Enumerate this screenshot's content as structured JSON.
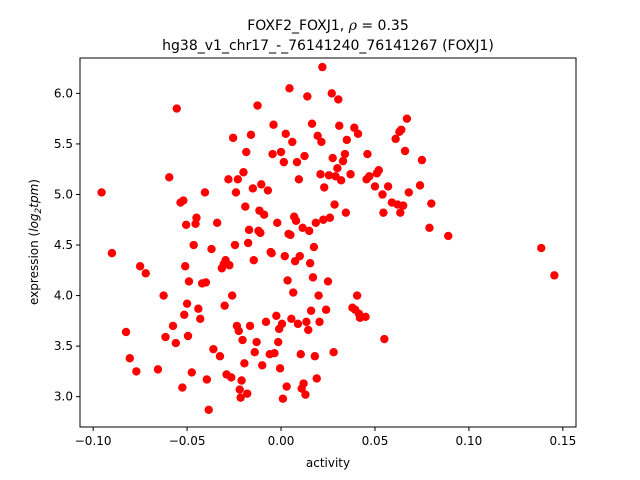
{
  "chart_data": {
    "type": "scatter",
    "title_line1_prefix": "FOXF2_FOXJ1, ",
    "title_line1_rho": "ρ",
    "title_line1_suffix": " = 0.35",
    "title_line2": "hg38_v1_chr17_-_76141240_76141267 (FOXJ1)",
    "xlabel": "activity",
    "ylabel_prefix": "expression (",
    "ylabel_log": "log",
    "ylabel_sub": "2",
    "ylabel_tpm": "tpm",
    "ylabel_suffix": ")",
    "xlim": [
      -0.107,
      0.157
    ],
    "ylim": [
      2.7,
      6.35
    ],
    "xticks": [
      -0.1,
      -0.05,
      0.0,
      0.05,
      0.1,
      0.15
    ],
    "xtick_labels": [
      "−0.10",
      "−0.05",
      "0.00",
      "0.05",
      "0.10",
      "0.15"
    ],
    "yticks": [
      3.0,
      3.5,
      4.0,
      4.5,
      5.0,
      5.5,
      6.0
    ],
    "ytick_labels": [
      "3.0",
      "3.5",
      "4.0",
      "4.5",
      "5.0",
      "5.5",
      "6.0"
    ],
    "marker_color": "#ff0000",
    "points": [
      [
        -0.0955,
        5.02
      ],
      [
        -0.09,
        4.42
      ],
      [
        -0.0825,
        3.64
      ],
      [
        -0.0805,
        3.38
      ],
      [
        -0.077,
        3.25
      ],
      [
        -0.075,
        4.29
      ],
      [
        -0.072,
        4.22
      ],
      [
        -0.0655,
        3.27
      ],
      [
        -0.0625,
        4.0
      ],
      [
        -0.0615,
        3.59
      ],
      [
        -0.0595,
        5.17
      ],
      [
        -0.0575,
        3.7
      ],
      [
        -0.056,
        3.53
      ],
      [
        -0.0555,
        5.85
      ],
      [
        -0.0535,
        4.92
      ],
      [
        -0.052,
        4.94
      ],
      [
        -0.0525,
        3.09
      ],
      [
        -0.0515,
        3.81
      ],
      [
        -0.051,
        4.29
      ],
      [
        -0.0505,
        4.7
      ],
      [
        -0.05,
        3.92
      ],
      [
        -0.0495,
        3.6
      ],
      [
        -0.049,
        4.14
      ],
      [
        -0.0475,
        3.24
      ],
      [
        -0.0465,
        4.5
      ],
      [
        -0.0455,
        4.71
      ],
      [
        -0.045,
        4.77
      ],
      [
        -0.044,
        3.87
      ],
      [
        -0.043,
        3.77
      ],
      [
        -0.042,
        4.12
      ],
      [
        -0.0405,
        5.02
      ],
      [
        -0.04,
        4.13
      ],
      [
        -0.0395,
        3.17
      ],
      [
        -0.0385,
        2.87
      ],
      [
        -0.037,
        4.46
      ],
      [
        -0.036,
        3.47
      ],
      [
        -0.034,
        4.72
      ],
      [
        -0.0325,
        3.4
      ],
      [
        -0.0315,
        4.27
      ],
      [
        -0.0305,
        4.31
      ],
      [
        -0.03,
        3.9
      ],
      [
        -0.0295,
        4.35
      ],
      [
        -0.029,
        3.22
      ],
      [
        -0.028,
        5.15
      ],
      [
        -0.0275,
        4.3
      ],
      [
        -0.0265,
        3.19
      ],
      [
        -0.026,
        4.0
      ],
      [
        -0.0255,
        5.56
      ],
      [
        -0.0245,
        4.5
      ],
      [
        -0.024,
        5.02
      ],
      [
        -0.0235,
        3.7
      ],
      [
        -0.023,
        5.15
      ],
      [
        -0.0225,
        3.65
      ],
      [
        -0.022,
        3.07
      ],
      [
        -0.0215,
        2.99
      ],
      [
        -0.021,
        3.16
      ],
      [
        -0.0205,
        3.56
      ],
      [
        -0.02,
        5.22
      ],
      [
        -0.0195,
        3.33
      ],
      [
        -0.019,
        4.88
      ],
      [
        -0.0185,
        5.42
      ],
      [
        -0.018,
        3.03
      ],
      [
        -0.0175,
        4.52
      ],
      [
        -0.017,
        4.65
      ],
      [
        -0.0165,
        3.7
      ],
      [
        -0.016,
        5.59
      ],
      [
        -0.015,
        5.06
      ],
      [
        -0.0145,
        4.35
      ],
      [
        -0.014,
        3.44
      ],
      [
        -0.013,
        3.54
      ],
      [
        -0.0125,
        5.88
      ],
      [
        -0.012,
        4.64
      ],
      [
        -0.0115,
        4.84
      ],
      [
        -0.011,
        4.62
      ],
      [
        -0.0105,
        5.1
      ],
      [
        -0.01,
        3.31
      ],
      [
        -0.009,
        4.8
      ],
      [
        -0.008,
        3.74
      ],
      [
        -0.007,
        5.04
      ],
      [
        -0.006,
        3.42
      ],
      [
        -0.0055,
        4.43
      ],
      [
        -0.005,
        4.42
      ],
      [
        -0.0045,
        5.4
      ],
      [
        -0.004,
        5.69
      ],
      [
        -0.0035,
        3.43
      ],
      [
        -0.0025,
        3.8
      ],
      [
        -0.002,
        4.72
      ],
      [
        -0.0015,
        3.54
      ],
      [
        -0.001,
        3.67
      ],
      [
        -0.0005,
        3.28
      ],
      [
        0.0,
        5.42
      ],
      [
        0.0005,
        3.72
      ],
      [
        0.001,
        2.98
      ],
      [
        0.0015,
        5.32
      ],
      [
        0.002,
        4.39
      ],
      [
        0.0025,
        5.6
      ],
      [
        0.003,
        3.1
      ],
      [
        0.0035,
        4.15
      ],
      [
        0.004,
        4.61
      ],
      [
        0.0045,
        6.05
      ],
      [
        0.005,
        4.6
      ],
      [
        0.0055,
        3.77
      ],
      [
        0.006,
        5.52
      ],
      [
        0.0065,
        4.03
      ],
      [
        0.007,
        4.78
      ],
      [
        0.0075,
        4.34
      ],
      [
        0.008,
        4.74
      ],
      [
        0.0085,
        5.32
      ],
      [
        0.009,
        3.72
      ],
      [
        0.0095,
        5.15
      ],
      [
        0.01,
        4.39
      ],
      [
        0.0105,
        3.42
      ],
      [
        0.011,
        3.08
      ],
      [
        0.0115,
        4.67
      ],
      [
        0.012,
        3.13
      ],
      [
        0.0125,
        5.38
      ],
      [
        0.013,
        3.02
      ],
      [
        0.0135,
        3.74
      ],
      [
        0.014,
        5.97
      ],
      [
        0.0145,
        3.66
      ],
      [
        0.015,
        4.64
      ],
      [
        0.0155,
        4.32
      ],
      [
        0.016,
        3.85
      ],
      [
        0.0165,
        5.7
      ],
      [
        0.017,
        4.18
      ],
      [
        0.0175,
        4.48
      ],
      [
        0.018,
        3.4
      ],
      [
        0.0185,
        4.72
      ],
      [
        0.019,
        3.18
      ],
      [
        0.0195,
        5.58
      ],
      [
        0.02,
        4.0
      ],
      [
        0.0205,
        3.74
      ],
      [
        0.021,
        5.2
      ],
      [
        0.0215,
        5.52
      ],
      [
        0.022,
        6.26
      ],
      [
        0.0225,
        4.75
      ],
      [
        0.023,
        5.07
      ],
      [
        0.024,
        3.86
      ],
      [
        0.025,
        4.14
      ],
      [
        0.0255,
        5.19
      ],
      [
        0.026,
        4.77
      ],
      [
        0.027,
        6.0
      ],
      [
        0.0275,
        5.36
      ],
      [
        0.028,
        3.44
      ],
      [
        0.0285,
        4.9
      ],
      [
        0.029,
        5.18
      ],
      [
        0.03,
        5.26
      ],
      [
        0.0305,
        5.94
      ],
      [
        0.031,
        5.68
      ],
      [
        0.032,
        5.14
      ],
      [
        0.033,
        5.33
      ],
      [
        0.034,
        5.4
      ],
      [
        0.0345,
        4.82
      ],
      [
        0.035,
        5.54
      ],
      [
        0.037,
        5.2
      ],
      [
        0.038,
        3.88
      ],
      [
        0.039,
        5.66
      ],
      [
        0.0395,
        3.86
      ],
      [
        0.0405,
        4.0
      ],
      [
        0.041,
        5.6
      ],
      [
        0.0415,
        3.82
      ],
      [
        0.042,
        3.78
      ],
      [
        0.045,
        3.79
      ],
      [
        0.0455,
        5.15
      ],
      [
        0.046,
        5.4
      ],
      [
        0.047,
        5.18
      ],
      [
        0.05,
        5.08
      ],
      [
        0.051,
        5.21
      ],
      [
        0.052,
        5.24
      ],
      [
        0.054,
        5.0
      ],
      [
        0.0545,
        4.82
      ],
      [
        0.055,
        3.57
      ],
      [
        0.057,
        5.08
      ],
      [
        0.059,
        4.92
      ],
      [
        0.061,
        5.55
      ],
      [
        0.062,
        4.9
      ],
      [
        0.063,
        5.62
      ],
      [
        0.0635,
        4.82
      ],
      [
        0.064,
        5.64
      ],
      [
        0.065,
        4.89
      ],
      [
        0.066,
        5.43
      ],
      [
        0.067,
        5.75
      ],
      [
        0.068,
        5.02
      ],
      [
        0.074,
        5.09
      ],
      [
        0.075,
        5.34
      ],
      [
        0.079,
        4.67
      ],
      [
        0.08,
        4.91
      ],
      [
        0.089,
        4.59
      ],
      [
        0.1385,
        4.47
      ],
      [
        0.1455,
        4.2
      ]
    ]
  }
}
